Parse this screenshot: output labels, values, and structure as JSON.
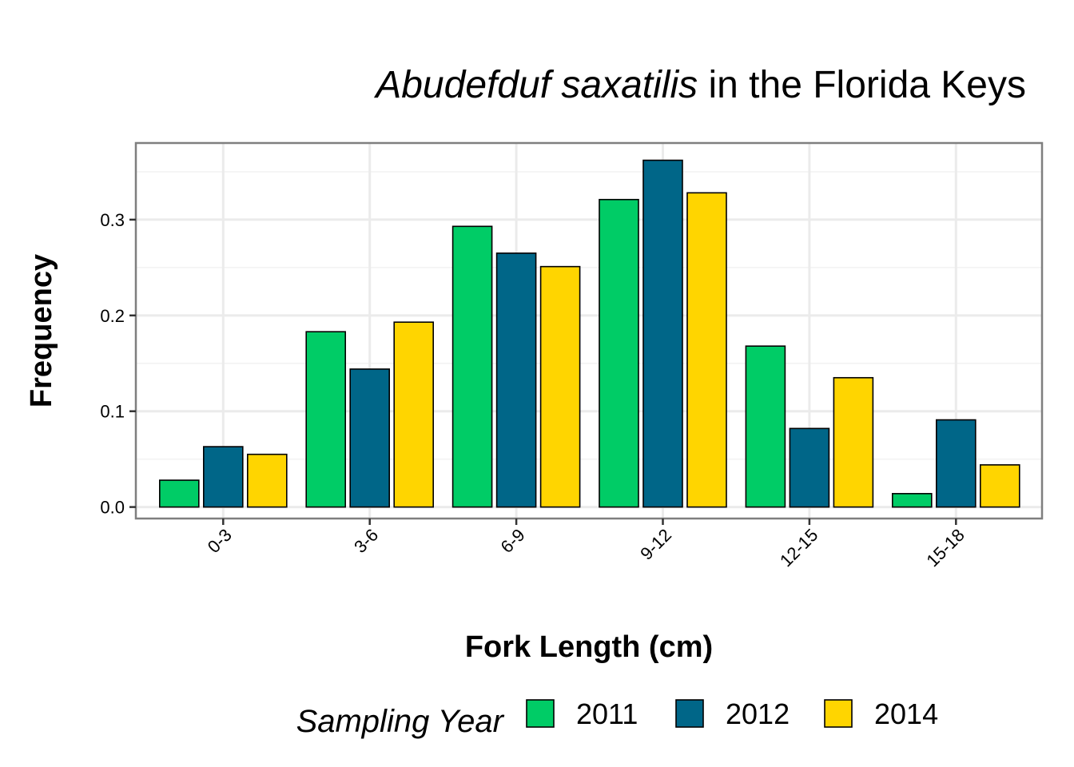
{
  "chart_data": {
    "type": "bar",
    "title_italic": "Abudefduf saxatilis",
    "title_rest": " in the Florida Keys",
    "xlabel": "Fork Length (cm)",
    "ylabel": "Frequency",
    "ylim": [
      -0.012,
      0.38
    ],
    "yticks": [
      0.0,
      0.1,
      0.2,
      0.3
    ],
    "ytick_labels": [
      "0.0",
      "0.1",
      "0.2",
      "0.3"
    ],
    "grid": true,
    "legend_position": "bottom",
    "legend_title": "Sampling Year",
    "categories": [
      "0-3",
      "3-6",
      "6-9",
      "9-12",
      "12-15",
      "15-18"
    ],
    "series": [
      {
        "name": "2011",
        "color": "#00CC66",
        "values": [
          0.028,
          0.183,
          0.293,
          0.321,
          0.168,
          0.014
        ]
      },
      {
        "name": "2012",
        "color": "#006688",
        "values": [
          0.063,
          0.144,
          0.265,
          0.362,
          0.082,
          0.091
        ]
      },
      {
        "name": "2014",
        "color": "#FFD500",
        "values": [
          0.055,
          0.193,
          0.251,
          0.328,
          0.135,
          0.044
        ]
      }
    ]
  }
}
